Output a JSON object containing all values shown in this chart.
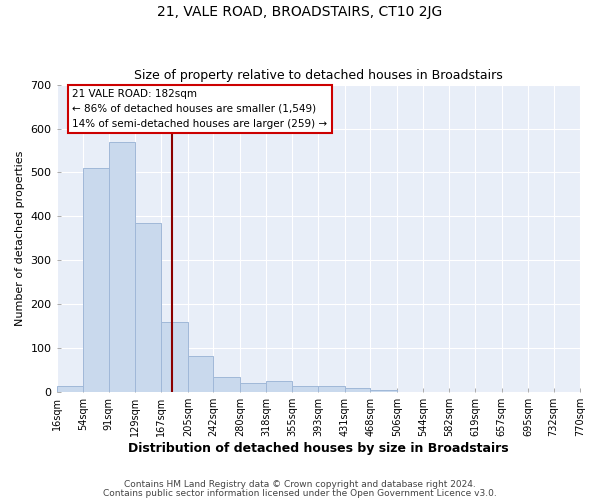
{
  "title": "21, VALE ROAD, BROADSTAIRS, CT10 2JG",
  "subtitle": "Size of property relative to detached houses in Broadstairs",
  "xlabel": "Distribution of detached houses by size in Broadstairs",
  "ylabel": "Number of detached properties",
  "bar_color": "#c9d9ed",
  "bar_edge_color": "#a0b8d8",
  "bg_color": "#e8eef8",
  "grid_color": "#ffffff",
  "vline_x": 182,
  "vline_color": "#8b0000",
  "bin_edges": [
    16,
    54,
    91,
    129,
    167,
    205,
    242,
    280,
    318,
    355,
    393,
    431,
    468,
    506,
    544,
    582,
    619,
    657,
    695,
    732,
    770
  ],
  "bin_counts": [
    14,
    511,
    570,
    385,
    160,
    83,
    35,
    22,
    25,
    13,
    13,
    9,
    5,
    0,
    0,
    0,
    0,
    0,
    0,
    0
  ],
  "tick_labels": [
    "16sqm",
    "54sqm",
    "91sqm",
    "129sqm",
    "167sqm",
    "205sqm",
    "242sqm",
    "280sqm",
    "318sqm",
    "355sqm",
    "393sqm",
    "431sqm",
    "468sqm",
    "506sqm",
    "544sqm",
    "582sqm",
    "619sqm",
    "657sqm",
    "695sqm",
    "732sqm",
    "770sqm"
  ],
  "ylim": [
    0,
    700
  ],
  "yticks": [
    0,
    100,
    200,
    300,
    400,
    500,
    600,
    700
  ],
  "annotation_title": "21 VALE ROAD: 182sqm",
  "annotation_line1": "← 86% of detached houses are smaller (1,549)",
  "annotation_line2": "14% of semi-detached houses are larger (259) →",
  "annotation_box_color": "#ffffff",
  "annotation_box_edge": "#cc0000",
  "footnote1": "Contains HM Land Registry data © Crown copyright and database right 2024.",
  "footnote2": "Contains public sector information licensed under the Open Government Licence v3.0."
}
